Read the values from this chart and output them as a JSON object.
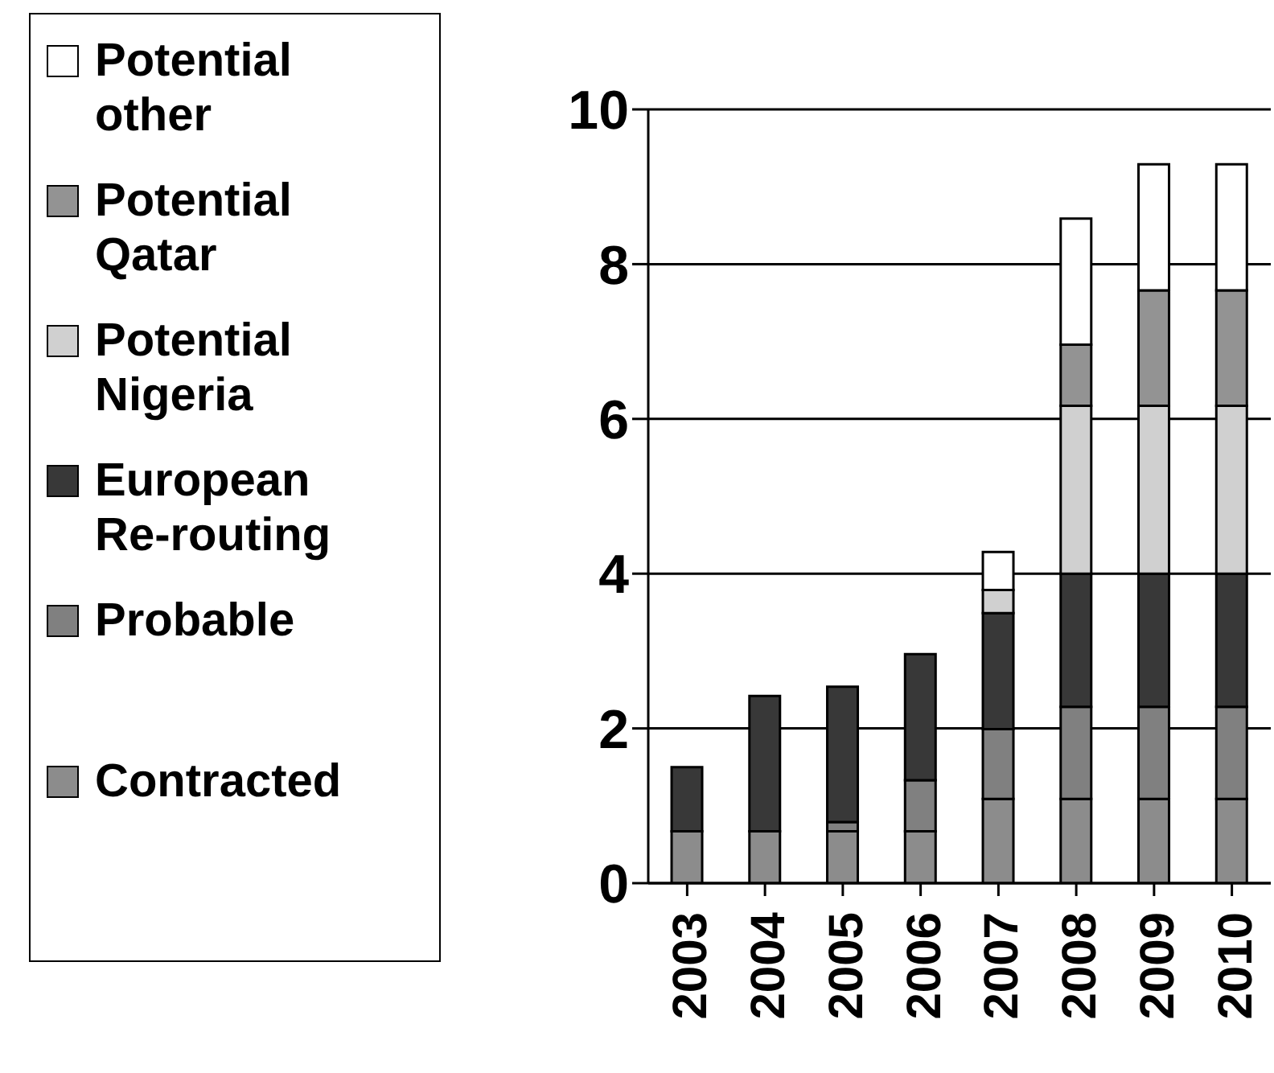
{
  "chart_data": {
    "type": "bar",
    "stacked": true,
    "categories": [
      "2003",
      "2004",
      "2005",
      "2006",
      "2007",
      "2008",
      "2009",
      "2010"
    ],
    "series": [
      {
        "name": "Contracted",
        "color": "#8c8c8c",
        "values": [
          0.67,
          0.67,
          0.67,
          0.67,
          1.09,
          1.09,
          1.09,
          1.09
        ]
      },
      {
        "name": "Probable",
        "color": "#808080",
        "values": [
          0,
          0,
          0.12,
          0.66,
          0.9,
          1.19,
          1.19,
          1.19
        ]
      },
      {
        "name": "European Re-routing",
        "color": "#383838",
        "values": [
          0.83,
          1.75,
          1.75,
          1.63,
          1.5,
          1.72,
          1.72,
          1.72
        ]
      },
      {
        "name": "Potential Nigeria",
        "color": "#d0d0d0",
        "values": [
          0,
          0,
          0,
          0,
          0.3,
          2.17,
          2.17,
          2.17
        ]
      },
      {
        "name": "Potential Qatar",
        "color": "#939393",
        "values": [
          0,
          0,
          0,
          0,
          0,
          0.79,
          1.49,
          1.49
        ]
      },
      {
        "name": "Potential other",
        "color": "#ffffff",
        "values": [
          0,
          0,
          0,
          0,
          0.49,
          1.63,
          1.63,
          1.63
        ]
      }
    ],
    "ylim": [
      0,
      10
    ],
    "yticks": [
      0,
      2,
      4,
      6,
      8,
      10
    ],
    "grid": "y",
    "legend": "left"
  }
}
